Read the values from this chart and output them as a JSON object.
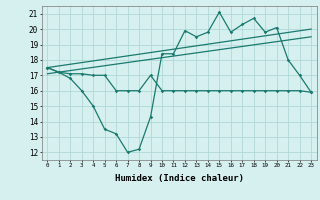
{
  "xlabel": "Humidex (Indice chaleur)",
  "bg_color": "#d6f0f0",
  "line_color": "#1a7a6e",
  "grid_color": "#b0d8d8",
  "xlim": [
    -0.5,
    23.5
  ],
  "ylim": [
    11.5,
    21.5
  ],
  "yticks": [
    12,
    13,
    14,
    15,
    16,
    17,
    18,
    19,
    20,
    21
  ],
  "xticks": [
    0,
    1,
    2,
    3,
    4,
    5,
    6,
    7,
    8,
    9,
    10,
    11,
    12,
    13,
    14,
    15,
    16,
    17,
    18,
    19,
    20,
    21,
    22,
    23
  ],
  "series1_x": [
    0,
    1,
    2,
    3,
    4,
    5,
    6,
    7,
    8,
    9,
    10,
    11,
    12,
    13,
    14,
    15,
    16,
    17,
    18,
    19,
    20,
    21,
    22,
    23
  ],
  "series1_y": [
    17.5,
    17.2,
    16.8,
    16.0,
    15.0,
    13.5,
    13.2,
    12.0,
    12.2,
    14.3,
    18.4,
    18.4,
    19.9,
    19.5,
    19.8,
    21.1,
    19.8,
    20.3,
    20.7,
    19.8,
    20.1,
    18.0,
    17.0,
    15.9
  ],
  "series2_x": [
    0,
    1,
    2,
    3,
    4,
    5,
    6,
    7,
    8,
    9,
    10,
    11,
    12,
    13,
    14,
    15,
    16,
    17,
    18,
    19,
    20,
    21,
    22,
    23
  ],
  "series2_y": [
    17.5,
    17.2,
    17.1,
    17.1,
    17.0,
    17.0,
    16.0,
    16.0,
    16.0,
    17.0,
    16.0,
    16.0,
    16.0,
    16.0,
    16.0,
    16.0,
    16.0,
    16.0,
    16.0,
    16.0,
    16.0,
    16.0,
    16.0,
    15.9
  ],
  "trend1_x": [
    0,
    23
  ],
  "trend1_y": [
    17.1,
    19.5
  ],
  "trend2_x": [
    0,
    23
  ],
  "trend2_y": [
    17.5,
    20.0
  ]
}
